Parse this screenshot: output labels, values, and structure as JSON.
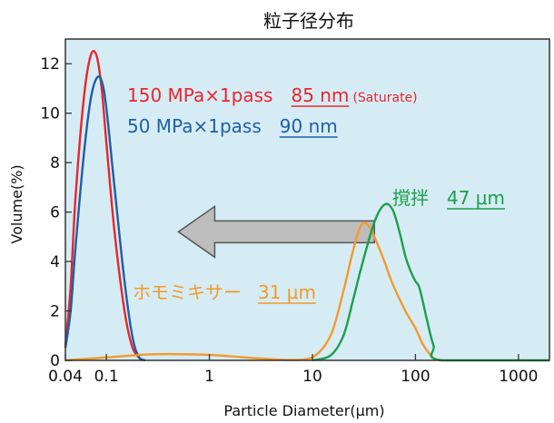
{
  "chart_data": {
    "type": "line",
    "title": "粒子径分布",
    "xlabel": "Particle Diameter(μm)",
    "ylabel": "Volume(%)",
    "x_scale": "log",
    "xlim": [
      0.04,
      2000
    ],
    "ylim": [
      0,
      13
    ],
    "x_ticks": [
      0.04,
      0.1,
      1,
      10,
      100,
      1000
    ],
    "x_tick_labels": [
      "0.04",
      "0.1",
      "1",
      "10",
      "100",
      "1000"
    ],
    "y_ticks": [
      0,
      2,
      4,
      6,
      8,
      10,
      12
    ],
    "y_tick_labels": [
      "0",
      "2",
      "4",
      "6",
      "8",
      "10",
      "12"
    ],
    "background": "#d6ecf5",
    "grid": false,
    "series": [
      {
        "name": "150 MPa×1pass",
        "color": "#e8262d",
        "points": [
          [
            0.04,
            0.6
          ],
          [
            0.045,
            3.0
          ],
          [
            0.05,
            6.5
          ],
          [
            0.06,
            10.5
          ],
          [
            0.07,
            12.3
          ],
          [
            0.08,
            12.35
          ],
          [
            0.09,
            11.0
          ],
          [
            0.1,
            8.8
          ],
          [
            0.12,
            5.2
          ],
          [
            0.15,
            2.0
          ],
          [
            0.18,
            0.5
          ],
          [
            0.22,
            0.0
          ]
        ]
      },
      {
        "name": "50 MPa×1pass",
        "color": "#1d5fa8",
        "points": [
          [
            0.04,
            0.5
          ],
          [
            0.045,
            2.0
          ],
          [
            0.05,
            4.5
          ],
          [
            0.06,
            8.2
          ],
          [
            0.07,
            10.5
          ],
          [
            0.08,
            11.4
          ],
          [
            0.09,
            11.3
          ],
          [
            0.1,
            10.2
          ],
          [
            0.12,
            7.0
          ],
          [
            0.15,
            3.2
          ],
          [
            0.18,
            0.9
          ],
          [
            0.21,
            0.1
          ],
          [
            0.24,
            0.0
          ]
        ]
      },
      {
        "name": "ホモミキサー",
        "color": "#f39a2a",
        "points": [
          [
            0.04,
            0.0
          ],
          [
            0.1,
            0.12
          ],
          [
            0.3,
            0.25
          ],
          [
            1,
            0.22
          ],
          [
            3,
            0.08
          ],
          [
            6,
            0.02
          ],
          [
            10,
            0.12
          ],
          [
            15,
            1.0
          ],
          [
            20,
            2.8
          ],
          [
            25,
            4.5
          ],
          [
            30,
            5.5
          ],
          [
            35,
            5.45
          ],
          [
            40,
            5.0
          ],
          [
            50,
            4.0
          ],
          [
            60,
            3.1
          ],
          [
            80,
            2.0
          ],
          [
            100,
            1.3
          ],
          [
            120,
            0.6
          ],
          [
            150,
            0.1
          ],
          [
            180,
            0.0
          ]
        ]
      },
      {
        "name": "撹拌",
        "color": "#1aa04a",
        "points": [
          [
            10,
            0.0
          ],
          [
            15,
            0.2
          ],
          [
            20,
            1.0
          ],
          [
            25,
            2.5
          ],
          [
            30,
            3.8
          ],
          [
            40,
            5.6
          ],
          [
            50,
            6.3
          ],
          [
            60,
            6.1
          ],
          [
            70,
            5.2
          ],
          [
            80,
            4.2
          ],
          [
            90,
            3.6
          ],
          [
            100,
            3.2
          ],
          [
            110,
            2.9
          ],
          [
            130,
            1.6
          ],
          [
            150,
            0.6
          ],
          [
            180,
            0.0
          ],
          [
            2000,
            0.0
          ]
        ]
      }
    ],
    "annotations": [
      {
        "text": "150 MPa×1pass",
        "value": "85 nm",
        "suffix": "(Saturate)",
        "color": "#e8262d"
      },
      {
        "text": "50 MPa×1pass",
        "value": "90 nm",
        "color": "#1d5fa8"
      },
      {
        "text": "撹拌",
        "value": "47 μm",
        "color": "#1aa04a"
      },
      {
        "text": "ホモミキサー",
        "value": "31 μm",
        "color": "#f39a2a"
      }
    ],
    "arrow": {
      "from_x": 40,
      "to_x": 0.5,
      "y": 5.2,
      "color": "#bdbdbd"
    }
  }
}
